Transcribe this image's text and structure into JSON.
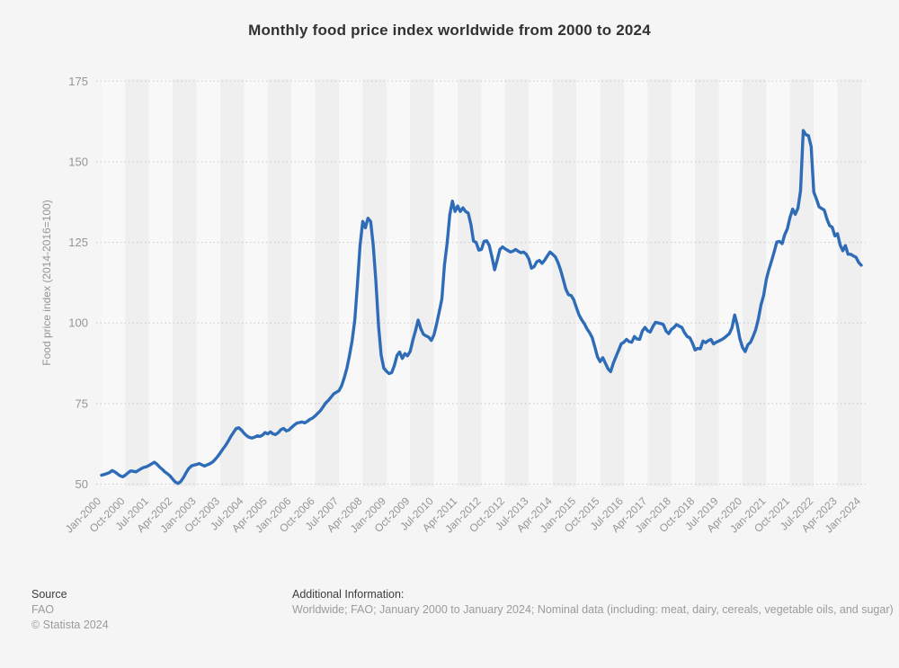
{
  "header": {
    "title": "Monthly food price index worldwide from 2000 to 2024"
  },
  "colors": {
    "line": "#2e6cb8",
    "grid_dots": "#c8c8c8",
    "band_light": "#f8f8f8",
    "band_dark": "#efefef",
    "background": "#f5f5f5",
    "axis_text": "#959595",
    "title_text": "#323232"
  },
  "chart_data": {
    "type": "line",
    "title": "Monthly food price index worldwide from 2000 to 2024",
    "xlabel": "",
    "ylabel": "Food price index (2014-2016=100)",
    "ylim": [
      50,
      175
    ],
    "yticks": [
      50,
      75,
      100,
      125,
      150,
      175
    ],
    "grid": "horizontal dotted lines; vertical alternating 9-month background bands",
    "legend": "none",
    "x_unit": "month",
    "x_range": "January 2000 to January 2024",
    "xticklabels": [
      "Jan-2000",
      "Oct-2000",
      "Jul-2001",
      "Apr-2002",
      "Jan-2003",
      "Oct-2003",
      "Jul-2004",
      "Apr-2005",
      "Jan-2006",
      "Oct-2006",
      "Jul-2007",
      "Apr-2008",
      "Jan-2009",
      "Oct-2009",
      "Jul-2010",
      "Apr-2011",
      "Jan-2012",
      "Oct-2012",
      "Jul-2013",
      "Apr-2014",
      "Jan-2015",
      "Oct-2015",
      "Jul-2016",
      "Apr-2017",
      "Jan-2018",
      "Oct-2018",
      "Jul-2019",
      "Apr-2020",
      "Jan-2021",
      "Oct-2021",
      "Jul-2022",
      "Apr-2023",
      "Jan-2024"
    ],
    "series": [
      {
        "name": "Food price index (2014-2016=100)",
        "start_month": "Jan-2000",
        "end_month": "Jan-2024",
        "monthly_values": [
          52.8,
          53.0,
          53.3,
          53.6,
          54.2,
          53.8,
          53.2,
          52.6,
          52.3,
          52.8,
          53.5,
          54.1,
          54.0,
          53.8,
          54.3,
          54.8,
          55.2,
          55.4,
          55.8,
          56.3,
          56.8,
          56.2,
          55.3,
          54.6,
          53.8,
          53.2,
          52.5,
          51.5,
          50.6,
          50.2,
          50.8,
          52.0,
          53.5,
          54.8,
          55.6,
          55.9,
          56.1,
          56.4,
          56.0,
          55.6,
          56.0,
          56.3,
          56.8,
          57.6,
          58.6,
          59.7,
          60.9,
          62.0,
          63.3,
          64.8,
          66.0,
          67.2,
          67.5,
          66.8,
          65.8,
          65.0,
          64.5,
          64.3,
          64.6,
          65.0,
          64.8,
          65.2,
          66.0,
          65.6,
          66.2,
          65.6,
          65.4,
          66.0,
          66.9,
          67.3,
          66.5,
          66.8,
          67.6,
          68.3,
          68.9,
          69.1,
          69.3,
          69.0,
          69.5,
          70.1,
          70.5,
          71.2,
          72.0,
          72.8,
          74.0,
          75.2,
          76.0,
          77.0,
          78.0,
          78.5,
          79.0,
          80.5,
          83.0,
          86.0,
          90.0,
          94.5,
          101.0,
          112.0,
          124.0,
          131.5,
          129.5,
          132.5,
          131.5,
          124.0,
          113.0,
          99.0,
          90.0,
          86.0,
          85.0,
          84.3,
          84.6,
          86.8,
          89.9,
          91.0,
          89.0,
          90.5,
          89.8,
          91.2,
          94.6,
          97.5,
          100.9,
          98.3,
          96.5,
          96.0,
          95.6,
          94.6,
          96.3,
          99.6,
          103.5,
          107.4,
          118.0,
          124.8,
          133.5,
          137.8,
          134.6,
          136.3,
          134.6,
          135.7,
          134.6,
          134.1,
          130.6,
          125.4,
          125.0,
          122.6,
          122.8,
          125.3,
          125.5,
          124.0,
          120.5,
          116.5,
          119.5,
          122.8,
          123.6,
          123.0,
          122.5,
          122.0,
          122.3,
          122.8,
          122.2,
          121.8,
          122.0,
          121.3,
          119.8,
          117.0,
          117.5,
          119.0,
          119.4,
          118.5,
          119.5,
          120.8,
          122.0,
          121.3,
          120.5,
          118.8,
          116.5,
          113.5,
          110.5,
          108.8,
          108.5,
          107.2,
          104.8,
          102.5,
          101.0,
          99.8,
          98.2,
          97.0,
          95.5,
          92.5,
          89.5,
          88.0,
          89.2,
          87.5,
          85.8,
          84.9,
          87.5,
          89.5,
          91.5,
          93.5,
          94.0,
          94.9,
          94.2,
          94.0,
          95.8,
          95.0,
          94.9,
          97.5,
          98.6,
          97.6,
          97.2,
          98.9,
          100.2,
          100.0,
          99.8,
          99.5,
          97.5,
          96.7,
          98.0,
          98.6,
          99.5,
          99.0,
          98.6,
          97.0,
          95.8,
          95.4,
          93.8,
          91.6,
          92.1,
          92.0,
          94.4,
          93.9,
          94.5,
          94.9,
          93.5,
          94.0,
          94.4,
          94.8,
          95.3,
          96.0,
          96.7,
          98.5,
          102.5,
          99.4,
          95.1,
          92.4,
          91.1,
          93.2,
          94.0,
          95.8,
          97.9,
          101.3,
          105.6,
          108.5,
          113.5,
          116.6,
          119.2,
          122.1,
          125.1,
          125.3,
          124.6,
          127.4,
          129.2,
          132.8,
          135.3,
          133.7,
          135.6,
          141.1,
          159.7,
          158.4,
          158.1,
          154.7,
          140.6,
          138.5,
          136.0,
          135.5,
          135.0,
          132.2,
          130.2,
          129.7,
          127.0,
          127.7,
          124.2,
          122.4,
          124.0,
          121.3,
          121.3,
          120.8,
          120.4,
          118.8,
          117.9
        ]
      }
    ]
  },
  "footer": {
    "source_label": "Source",
    "source_value": "FAO",
    "copyright": "© Statista 2024",
    "additional_label": "Additional Information:",
    "additional_value": "Worldwide; FAO; January 2000 to January 2024; Nominal data (including: meat, dairy, cereals, vegetable oils, and sugar)"
  }
}
